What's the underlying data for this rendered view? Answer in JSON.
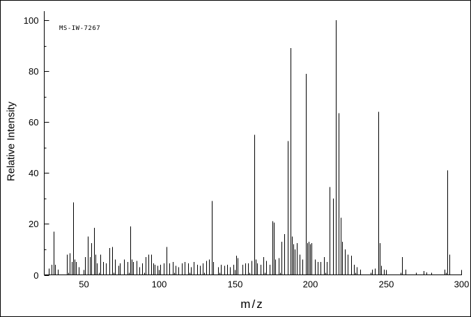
{
  "colors": {
    "background": "#ffffff",
    "axis": "#000000",
    "peak": "#000000",
    "text": "#000000"
  },
  "chart_data": {
    "type": "bar",
    "subtype": "mass-spectrum",
    "annotation": "MS-IW-7267",
    "title": "",
    "xlabel": "m/z",
    "ylabel": "Relative Intensity",
    "xlim": [
      24,
      300
    ],
    "ylim": [
      0,
      100
    ],
    "x_ticks": [
      50,
      100,
      150,
      200,
      250,
      300
    ],
    "y_ticks": [
      0,
      20,
      40,
      60,
      80,
      100
    ],
    "x_minor_step": 10,
    "y_minor_step": 10,
    "peaks": [
      [
        27,
        2.5
      ],
      [
        29,
        4
      ],
      [
        30,
        17
      ],
      [
        31,
        4
      ],
      [
        33,
        2
      ],
      [
        39,
        8
      ],
      [
        41,
        8.5
      ],
      [
        42,
        5
      ],
      [
        43,
        28.5
      ],
      [
        44,
        6
      ],
      [
        45,
        5
      ],
      [
        47,
        3
      ],
      [
        51,
        7
      ],
      [
        53,
        15
      ],
      [
        54,
        7
      ],
      [
        55,
        12.5
      ],
      [
        57,
        18.5
      ],
      [
        58,
        8
      ],
      [
        59,
        4.5
      ],
      [
        61,
        8
      ],
      [
        63,
        5
      ],
      [
        65,
        4.5
      ],
      [
        67,
        10.5
      ],
      [
        69,
        11
      ],
      [
        71,
        6
      ],
      [
        73,
        3.5
      ],
      [
        74,
        4.5
      ],
      [
        77,
        6
      ],
      [
        79,
        5
      ],
      [
        81,
        19
      ],
      [
        82,
        6
      ],
      [
        83,
        5
      ],
      [
        85,
        5.5
      ],
      [
        87,
        3
      ],
      [
        89,
        4.5
      ],
      [
        91,
        7
      ],
      [
        93,
        8
      ],
      [
        95,
        8
      ],
      [
        96,
        4.5
      ],
      [
        97,
        4
      ],
      [
        99,
        3.5
      ],
      [
        101,
        4
      ],
      [
        103,
        4.5
      ],
      [
        105,
        11
      ],
      [
        107,
        4.5
      ],
      [
        109,
        5
      ],
      [
        111,
        3.5
      ],
      [
        113,
        3
      ],
      [
        115,
        4.5
      ],
      [
        117,
        5
      ],
      [
        119,
        4.5
      ],
      [
        121,
        3
      ],
      [
        123,
        5
      ],
      [
        125,
        4
      ],
      [
        127,
        3.5
      ],
      [
        129,
        4.5
      ],
      [
        131,
        5.5
      ],
      [
        133,
        6
      ],
      [
        135,
        29
      ],
      [
        136,
        5
      ],
      [
        139,
        3
      ],
      [
        141,
        4
      ],
      [
        143,
        3.5
      ],
      [
        145,
        4
      ],
      [
        147,
        3
      ],
      [
        149,
        4
      ],
      [
        151,
        7.5
      ],
      [
        152,
        6.5
      ],
      [
        155,
        4
      ],
      [
        157,
        4.5
      ],
      [
        159,
        4.5
      ],
      [
        161,
        5.5
      ],
      [
        163,
        55
      ],
      [
        164,
        6
      ],
      [
        165,
        4.5
      ],
      [
        167,
        4
      ],
      [
        169,
        7
      ],
      [
        171,
        5.5
      ],
      [
        173,
        4
      ],
      [
        175,
        21
      ],
      [
        176,
        20.5
      ],
      [
        177,
        6
      ],
      [
        179,
        6.5
      ],
      [
        181,
        13
      ],
      [
        183,
        16
      ],
      [
        185,
        52.5
      ],
      [
        187,
        89
      ],
      [
        188,
        15
      ],
      [
        189,
        12
      ],
      [
        190,
        10
      ],
      [
        191,
        12.5
      ],
      [
        193,
        8
      ],
      [
        195,
        6
      ],
      [
        197,
        79
      ],
      [
        198,
        12.5
      ],
      [
        199,
        13
      ],
      [
        200,
        12
      ],
      [
        201,
        12.5
      ],
      [
        203,
        6
      ],
      [
        205,
        5
      ],
      [
        207,
        5
      ],
      [
        209,
        7
      ],
      [
        211,
        5
      ],
      [
        213,
        34.5
      ],
      [
        215,
        30
      ],
      [
        217,
        100
      ],
      [
        219,
        63.5
      ],
      [
        220,
        22.5
      ],
      [
        221,
        13
      ],
      [
        223,
        10
      ],
      [
        225,
        8
      ],
      [
        227,
        7.5
      ],
      [
        229,
        4
      ],
      [
        231,
        3
      ],
      [
        233,
        2
      ],
      [
        241,
        2
      ],
      [
        243,
        2.5
      ],
      [
        245,
        64
      ],
      [
        246,
        12.5
      ],
      [
        247,
        3.5
      ],
      [
        249,
        2
      ],
      [
        261,
        7
      ],
      [
        263,
        2
      ],
      [
        275,
        1.5
      ],
      [
        277,
        1
      ],
      [
        289,
        2
      ],
      [
        291,
        41
      ],
      [
        292,
        8
      ]
    ]
  }
}
